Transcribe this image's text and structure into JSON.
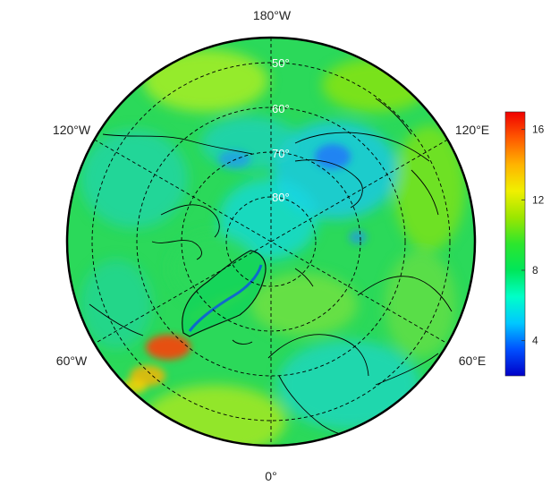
{
  "map": {
    "projection": "north polar stereographic",
    "meridian_labels": [
      {
        "lon": 180,
        "text": "180°W"
      },
      {
        "lon": -120,
        "text": "120°W"
      },
      {
        "lon": 120,
        "text": "120°E"
      },
      {
        "lon": -60,
        "text": "60°W"
      },
      {
        "lon": 60,
        "text": "60°E"
      },
      {
        "lon": 0,
        "text": "0°"
      }
    ],
    "parallel_labels": [
      {
        "lat": 50,
        "text": "50°"
      },
      {
        "lat": 60,
        "text": "60°"
      },
      {
        "lat": 70,
        "text": "70°"
      },
      {
        "lat": 80,
        "text": "80°"
      }
    ],
    "gridline_style": "dashed",
    "colors": {
      "boundary": "#000000",
      "ocean_base": "#2bd95a",
      "coast": "#000000"
    }
  },
  "colorbar": {
    "min": 2,
    "max": 17,
    "ticks": [
      {
        "value": 4,
        "text": "4"
      },
      {
        "value": 8,
        "text": "8"
      },
      {
        "value": 12,
        "text": "12"
      },
      {
        "value": 16,
        "text": "16"
      }
    ],
    "colormap": [
      "#0000c8",
      "#0050ff",
      "#00c8ff",
      "#00ffc8",
      "#00e65a",
      "#2de62d",
      "#9be600",
      "#f0f000",
      "#ffb400",
      "#ff5a00",
      "#f00000"
    ]
  }
}
